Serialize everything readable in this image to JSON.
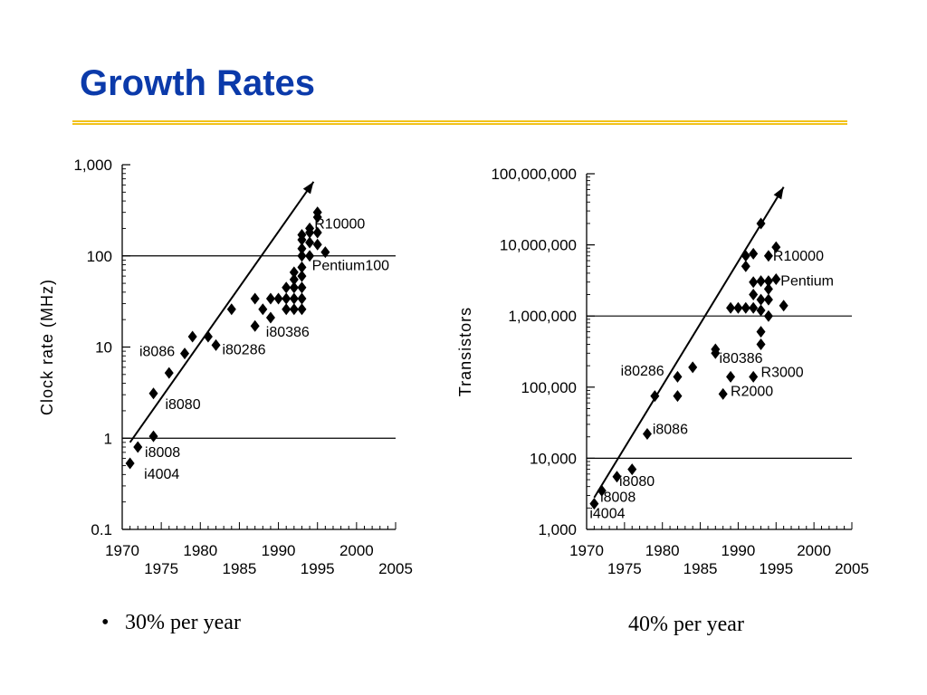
{
  "slide": {
    "title": "Growth Rates",
    "left_caption": "30% per year",
    "right_caption": "40% per year"
  },
  "colors": {
    "title": "#0b3aaa",
    "rule": "#f1c21b",
    "marks": "#000000"
  },
  "chart_data": [
    {
      "type": "scatter",
      "ylabel": "Clock rate (MHz)",
      "yscale": "log",
      "ylim": [
        0.1,
        1000
      ],
      "xlim": [
        1970,
        2005
      ],
      "yticks": [
        0.1,
        1,
        10,
        100,
        1000
      ],
      "ytick_labels": [
        "0.1",
        "1",
        "10",
        "100",
        "1,000"
      ],
      "xticks_top": [
        "1970",
        "1980",
        "1990",
        "2000"
      ],
      "xticks_bottom": [
        "1975",
        "1985",
        "1995",
        "2005"
      ],
      "reference_lines": [
        1,
        100
      ],
      "trend_line": [
        [
          1971,
          0.9
        ],
        [
          1994.5,
          650
        ]
      ],
      "points": [
        [
          1971,
          0.53
        ],
        [
          1972,
          0.8
        ],
        [
          1974,
          1.05
        ],
        [
          1974,
          3.1
        ],
        [
          1976,
          5.2
        ],
        [
          1978,
          8.5
        ],
        [
          1979,
          13
        ],
        [
          1981,
          13
        ],
        [
          1982,
          10.5
        ],
        [
          1984,
          26
        ],
        [
          1987,
          17
        ],
        [
          1987,
          34
        ],
        [
          1988,
          26
        ],
        [
          1989,
          21
        ],
        [
          1989,
          34
        ],
        [
          1990,
          34
        ],
        [
          1991,
          26
        ],
        [
          1991,
          34
        ],
        [
          1991,
          45
        ],
        [
          1992,
          26
        ],
        [
          1992,
          34
        ],
        [
          1992,
          45
        ],
        [
          1992,
          55
        ],
        [
          1992,
          66
        ],
        [
          1993,
          26
        ],
        [
          1993,
          34
        ],
        [
          1993,
          45
        ],
        [
          1993,
          60
        ],
        [
          1993,
          75
        ],
        [
          1993,
          100
        ],
        [
          1993,
          120
        ],
        [
          1993,
          150
        ],
        [
          1993,
          170
        ],
        [
          1994,
          100
        ],
        [
          1994,
          140
        ],
        [
          1994,
          180
        ],
        [
          1994,
          200
        ],
        [
          1995,
          133
        ],
        [
          1995,
          180
        ],
        [
          1995,
          266
        ],
        [
          1995,
          300
        ],
        [
          1996,
          110
        ]
      ],
      "labels": [
        {
          "text": "i4004",
          "x": 1972.8,
          "y": 0.36
        },
        {
          "text": "i8008",
          "x": 1972.9,
          "y": 0.62
        },
        {
          "text": "i8080",
          "x": 1975.5,
          "y": 2.1
        },
        {
          "text": "i8086",
          "x": 1972.2,
          "y": 8.0
        },
        {
          "text": "i80286",
          "x": 1982.8,
          "y": 8.3
        },
        {
          "text": "i80386",
          "x": 1988.4,
          "y": 13
        },
        {
          "text": "R10000",
          "x": 1994.6,
          "y": 200
        },
        {
          "text": "Pentium100",
          "x": 1994.3,
          "y": 70
        }
      ]
    },
    {
      "type": "scatter",
      "ylabel": "Transistors",
      "yscale": "log",
      "ylim": [
        1000,
        100000000
      ],
      "xlim": [
        1970,
        2005
      ],
      "yticks": [
        1000,
        10000,
        100000,
        1000000,
        10000000,
        100000000
      ],
      "ytick_labels": [
        "1,000",
        "10,000",
        "100,000",
        "1,000,000",
        "10,000,000",
        "100,000,000"
      ],
      "xticks_top": [
        "1970",
        "1980",
        "1990",
        "2000"
      ],
      "xticks_bottom": [
        "1975",
        "1985",
        "1995",
        "2005"
      ],
      "reference_lines": [
        10000,
        1000000
      ],
      "trend_line": [
        [
          1971,
          2800
        ],
        [
          1996,
          65000000
        ]
      ],
      "points": [
        [
          1971,
          2300
        ],
        [
          1972,
          3500
        ],
        [
          1974,
          5500
        ],
        [
          1976,
          7000
        ],
        [
          1978,
          22000
        ],
        [
          1979,
          75000
        ],
        [
          1982,
          140000
        ],
        [
          1982,
          75000
        ],
        [
          1984,
          190000
        ],
        [
          1987,
          300000
        ],
        [
          1987,
          340000
        ],
        [
          1989,
          1300000
        ],
        [
          1990,
          1300000
        ],
        [
          1991,
          1300000
        ],
        [
          1991,
          7000000
        ],
        [
          1992,
          2000000
        ],
        [
          1992,
          1300000
        ],
        [
          1992,
          3000000
        ],
        [
          1992,
          7500000
        ],
        [
          1993,
          20000000
        ],
        [
          1993,
          3100000
        ],
        [
          1993,
          1700000
        ],
        [
          1993,
          1200000
        ],
        [
          1993,
          600000
        ],
        [
          1993,
          400000
        ],
        [
          1994,
          3100000
        ],
        [
          1994,
          1700000
        ],
        [
          1994,
          1000000
        ],
        [
          1994,
          2400000
        ],
        [
          1994,
          7000000
        ],
        [
          1995,
          3300000
        ],
        [
          1995,
          9300000
        ],
        [
          1996,
          1400000
        ],
        [
          1991,
          5000000
        ],
        [
          1988,
          80000
        ],
        [
          1989,
          140000
        ],
        [
          1992,
          140000
        ]
      ],
      "labels": [
        {
          "text": "i4004",
          "x": 1970.4,
          "y": 1450
        },
        {
          "text": "i8008",
          "x": 1971.8,
          "y": 2450
        },
        {
          "text": "i8080",
          "x": 1974.3,
          "y": 4100
        },
        {
          "text": "i8086",
          "x": 1978.7,
          "y": 22000
        },
        {
          "text": "i80286",
          "x": 1974.5,
          "y": 145000
        },
        {
          "text": "i80386",
          "x": 1987.5,
          "y": 220000
        },
        {
          "text": "R3000",
          "x": 1993,
          "y": 140000
        },
        {
          "text": "R2000",
          "x": 1989,
          "y": 75000
        },
        {
          "text": "R10000",
          "x": 1994.6,
          "y": 6000000
        },
        {
          "text": "Pentium",
          "x": 1995.6,
          "y": 2700000
        }
      ]
    }
  ]
}
